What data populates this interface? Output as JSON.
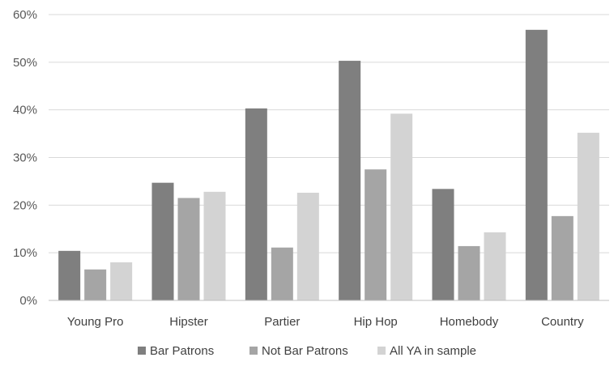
{
  "chart_data": {
    "type": "bar",
    "categories": [
      "Young Pro",
      "Hipster",
      "Partier",
      "Hip Hop",
      "Homebody",
      "Country"
    ],
    "series": [
      {
        "name": "Bar Patrons",
        "color": "#7f7f7f",
        "values": [
          10.4,
          24.7,
          40.3,
          50.3,
          23.4,
          56.8
        ]
      },
      {
        "name": "Not Bar Patrons",
        "color": "#a5a5a5",
        "values": [
          6.5,
          21.5,
          11.1,
          27.5,
          11.4,
          17.7
        ]
      },
      {
        "name": "All YA in sample",
        "color": "#d3d3d3",
        "values": [
          8.0,
          22.8,
          22.6,
          39.2,
          14.3,
          35.2
        ]
      }
    ],
    "y_ticks": [
      "0%",
      "10%",
      "20%",
      "30%",
      "40%",
      "50%",
      "60%"
    ],
    "ylim": [
      0,
      60
    ],
    "grid": true,
    "legend_position": "bottom"
  }
}
